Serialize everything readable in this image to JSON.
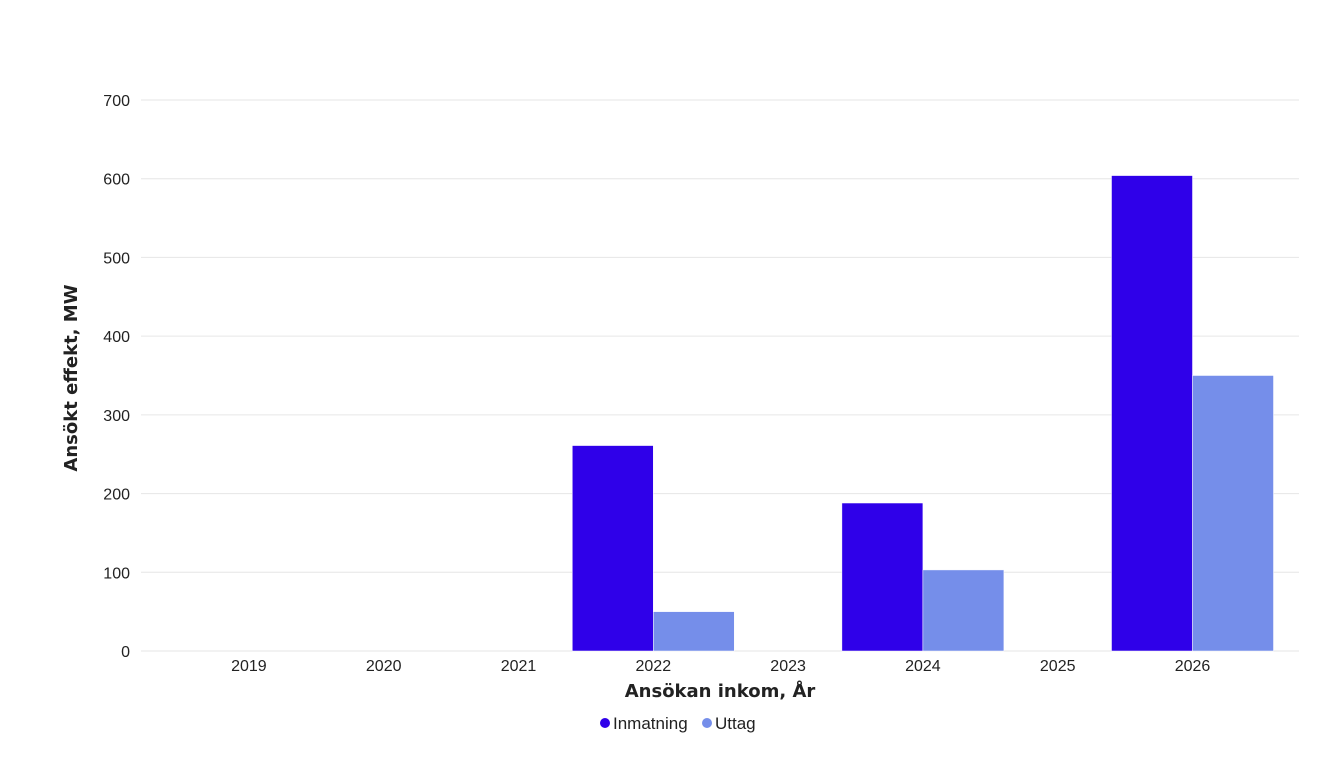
{
  "chart_data": {
    "type": "bar",
    "title": "",
    "xlabel": "Ansökan inkom, År",
    "ylabel": "Ansökt effekt, MW",
    "categories": [
      "2019",
      "2020",
      "2021",
      "2022",
      "2023",
      "2024",
      "2025",
      "2026"
    ],
    "series": [
      {
        "name": "Inmatning",
        "color": "#2f00e9",
        "values": [
          0,
          0,
          0,
          261,
          0,
          188,
          0,
          604
        ]
      },
      {
        "name": "Uttag",
        "color": "#758eea",
        "values": [
          0,
          0,
          0,
          50,
          0,
          103,
          0,
          350
        ]
      }
    ],
    "ylim": [
      0,
      700
    ],
    "yticks": [
      0,
      100,
      200,
      300,
      400,
      500,
      600,
      700
    ],
    "grid": true,
    "legend_position": "bottom-center"
  }
}
